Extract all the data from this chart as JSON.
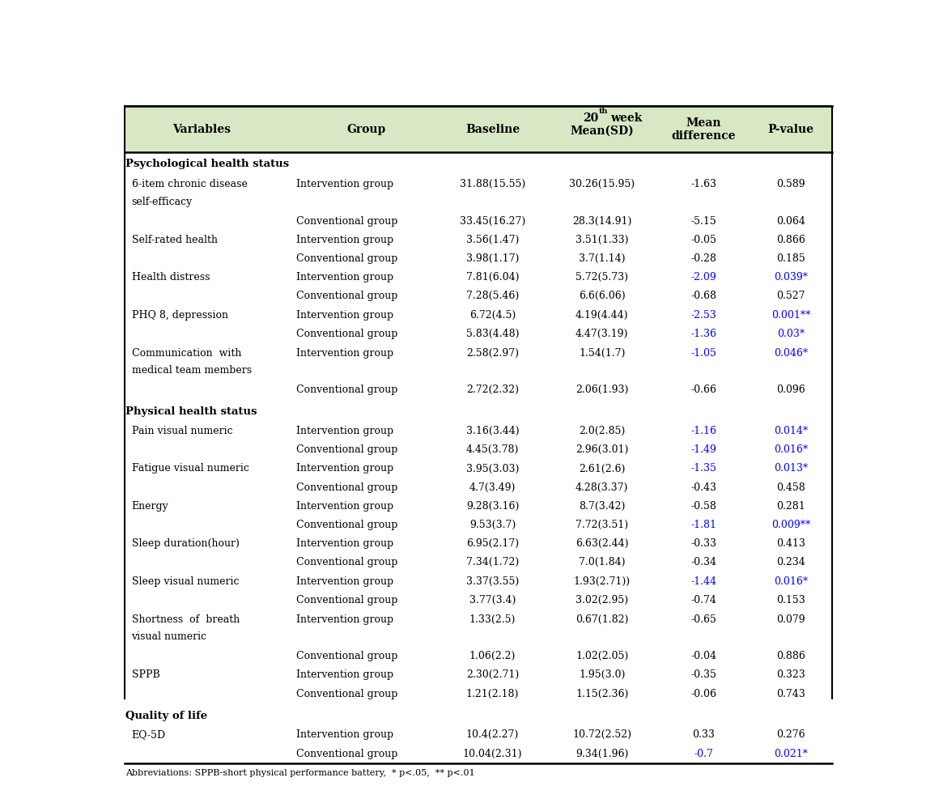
{
  "header_bg": "#d9e8c4",
  "black_color": "#000000",
  "blue_color": "#0000ff",
  "rows": [
    {
      "type": "section",
      "var": "Psychological health status"
    },
    {
      "type": "data",
      "var": "6-item chronic disease",
      "var2": "self-efficacy",
      "group": "Intervention group",
      "baseline": "31.88(15.55)",
      "week20": "30.26(15.95)",
      "diff": "-1.63",
      "pval": "0.589",
      "diff_blue": false,
      "pval_blue": false
    },
    {
      "type": "data2",
      "var": "",
      "var2": "",
      "group": "Conventional group",
      "baseline": "33.45(16.27)",
      "week20": "28.3(14.91)",
      "diff": "-5.15",
      "pval": "0.064",
      "diff_blue": false,
      "pval_blue": false
    },
    {
      "type": "data",
      "var": "Self-rated health",
      "var2": "",
      "group": "Intervention group",
      "baseline": "3.56(1.47)",
      "week20": "3.51(1.33)",
      "diff": "-0.05",
      "pval": "0.866",
      "diff_blue": false,
      "pval_blue": false
    },
    {
      "type": "data2",
      "var": "",
      "var2": "",
      "group": "Conventional group",
      "baseline": "3.98(1.17)",
      "week20": "3.7(1.14)",
      "diff": "-0.28",
      "pval": "0.185",
      "diff_blue": false,
      "pval_blue": false
    },
    {
      "type": "data",
      "var": "Health distress",
      "var2": "",
      "group": "Intervention group",
      "baseline": "7.81(6.04)",
      "week20": "5.72(5.73)",
      "diff": "-2.09",
      "pval": "0.039*",
      "diff_blue": true,
      "pval_blue": true
    },
    {
      "type": "data2",
      "var": "",
      "var2": "",
      "group": "Conventional group",
      "baseline": "7.28(5.46)",
      "week20": "6.6(6.06)",
      "diff": "-0.68",
      "pval": "0.527",
      "diff_blue": false,
      "pval_blue": false
    },
    {
      "type": "data",
      "var": "PHQ 8, depression",
      "var2": "",
      "group": "Intervention group",
      "baseline": "6.72(4.5)",
      "week20": "4.19(4.44)",
      "diff": "-2.53",
      "pval": "0.001**",
      "diff_blue": true,
      "pval_blue": true
    },
    {
      "type": "data2",
      "var": "",
      "var2": "",
      "group": "Conventional group",
      "baseline": "5.83(4.48)",
      "week20": "4.47(3.19)",
      "diff": "-1.36",
      "pval": "0.03*",
      "diff_blue": true,
      "pval_blue": true
    },
    {
      "type": "data",
      "var": "Communication  with",
      "var2": "medical team members",
      "group": "Intervention group",
      "baseline": "2.58(2.97)",
      "week20": "1.54(1.7)",
      "diff": "-1.05",
      "pval": "0.046*",
      "diff_blue": true,
      "pval_blue": true
    },
    {
      "type": "data2",
      "var": "",
      "var2": "",
      "group": "Conventional group",
      "baseline": "2.72(2.32)",
      "week20": "2.06(1.93)",
      "diff": "-0.66",
      "pval": "0.096",
      "diff_blue": false,
      "pval_blue": false
    },
    {
      "type": "section",
      "var": "Physical health status"
    },
    {
      "type": "data",
      "var": "Pain visual numeric",
      "var2": "",
      "group": "Intervention group",
      "baseline": "3.16(3.44)",
      "week20": "2.0(2.85)",
      "diff": "-1.16",
      "pval": "0.014*",
      "diff_blue": true,
      "pval_blue": true
    },
    {
      "type": "data2",
      "var": "",
      "var2": "",
      "group": "Conventional group",
      "baseline": "4.45(3.78)",
      "week20": "2.96(3.01)",
      "diff": "-1.49",
      "pval": "0.016*",
      "diff_blue": true,
      "pval_blue": true
    },
    {
      "type": "data",
      "var": "Fatigue visual numeric",
      "var2": "",
      "group": "Intervention group",
      "baseline": "3.95(3.03)",
      "week20": "2.61(2.6)",
      "diff": "-1.35",
      "pval": "0.013*",
      "diff_blue": true,
      "pval_blue": true
    },
    {
      "type": "data2",
      "var": "",
      "var2": "",
      "group": "Conventional group",
      "baseline": "4.7(3.49)",
      "week20": "4.28(3.37)",
      "diff": "-0.43",
      "pval": "0.458",
      "diff_blue": false,
      "pval_blue": false
    },
    {
      "type": "data",
      "var": "Energy",
      "var2": "",
      "group": "Intervention group",
      "baseline": "9.28(3.16)",
      "week20": "8.7(3.42)",
      "diff": "-0.58",
      "pval": "0.281",
      "diff_blue": false,
      "pval_blue": false
    },
    {
      "type": "data2",
      "var": "",
      "var2": "",
      "group": "Conventional group",
      "baseline": "9.53(3.7)",
      "week20": "7.72(3.51)",
      "diff": "-1.81",
      "pval": "0.009**",
      "diff_blue": true,
      "pval_blue": true
    },
    {
      "type": "data",
      "var": "Sleep duration(hour)",
      "var2": "",
      "group": "Intervention group",
      "baseline": "6.95(2.17)",
      "week20": "6.63(2.44)",
      "diff": "-0.33",
      "pval": "0.413",
      "diff_blue": false,
      "pval_blue": false
    },
    {
      "type": "data2",
      "var": "",
      "var2": "",
      "group": "Conventional group",
      "baseline": "7.34(1.72)",
      "week20": "7.0(1.84)",
      "diff": "-0.34",
      "pval": "0.234",
      "diff_blue": false,
      "pval_blue": false
    },
    {
      "type": "data",
      "var": "Sleep visual numeric",
      "var2": "",
      "group": "Intervention group",
      "baseline": "3.37(3.55)",
      "week20": "1.93(2.71))",
      "diff": "-1.44",
      "pval": "0.016*",
      "diff_blue": true,
      "pval_blue": true
    },
    {
      "type": "data2",
      "var": "",
      "var2": "",
      "group": "Conventional group",
      "baseline": "3.77(3.4)",
      "week20": "3.02(2.95)",
      "diff": "-0.74",
      "pval": "0.153",
      "diff_blue": false,
      "pval_blue": false
    },
    {
      "type": "data",
      "var": "Shortness  of  breath",
      "var2": "visual numeric",
      "group": "Intervention group",
      "baseline": "1.33(2.5)",
      "week20": "0.67(1.82)",
      "diff": "-0.65",
      "pval": "0.079",
      "diff_blue": false,
      "pval_blue": false
    },
    {
      "type": "data2",
      "var": "",
      "var2": "",
      "group": "Conventional group",
      "baseline": "1.06(2.2)",
      "week20": "1.02(2.05)",
      "diff": "-0.04",
      "pval": "0.886",
      "diff_blue": false,
      "pval_blue": false
    },
    {
      "type": "data",
      "var": "SPPB",
      "var2": "",
      "group": "Intervention group",
      "baseline": "2.30(2.71)",
      "week20": "1.95(3.0)",
      "diff": "-0.35",
      "pval": "0.323",
      "diff_blue": false,
      "pval_blue": false
    },
    {
      "type": "data2",
      "var": "",
      "var2": "",
      "group": "Conventional group",
      "baseline": "1.21(2.18)",
      "week20": "1.15(2.36)",
      "diff": "-0.06",
      "pval": "0.743",
      "diff_blue": false,
      "pval_blue": false
    },
    {
      "type": "section",
      "var": "Quality of life"
    },
    {
      "type": "data",
      "var": "EQ-5D",
      "var2": "",
      "group": "Intervention group",
      "baseline": "10.4(2.27)",
      "week20": "10.72(2.52)",
      "diff": "0.33",
      "pval": "0.276",
      "diff_blue": false,
      "pval_blue": false
    },
    {
      "type": "data2",
      "var": "",
      "var2": "",
      "group": "Conventional group",
      "baseline": "10.04(2.31)",
      "week20": "9.34(1.96)",
      "diff": "-0.7",
      "pval": "0.021*",
      "diff_blue": true,
      "pval_blue": true
    }
  ],
  "footnote": "Abbreviations: SPPB-short physical performance battery,  * p<.05,  ** p<.01"
}
